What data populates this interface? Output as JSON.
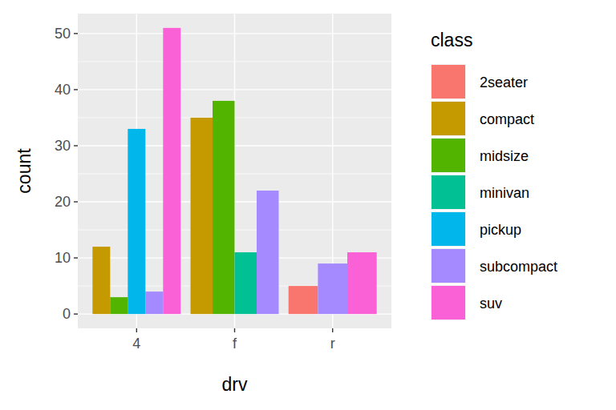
{
  "chart_data": {
    "type": "bar",
    "x_label": "drv",
    "y_label": "count",
    "categories": [
      "4",
      "f",
      "r"
    ],
    "legend_title": "class",
    "series": [
      {
        "name": "2seater",
        "color": "#F8766D",
        "values": [
          null,
          null,
          5
        ]
      },
      {
        "name": "compact",
        "color": "#C49A00",
        "values": [
          12,
          35,
          null
        ]
      },
      {
        "name": "midsize",
        "color": "#53B400",
        "values": [
          3,
          38,
          null
        ]
      },
      {
        "name": "minivan",
        "color": "#00C094",
        "values": [
          null,
          11,
          null
        ]
      },
      {
        "name": "pickup",
        "color": "#00B6EB",
        "values": [
          33,
          null,
          null
        ]
      },
      {
        "name": "subcompact",
        "color": "#A58AFF",
        "values": [
          4,
          22,
          9
        ]
      },
      {
        "name": "suv",
        "color": "#FB61D7",
        "values": [
          51,
          null,
          11
        ]
      }
    ],
    "ylim": [
      -2.55,
      53.55
    ],
    "yticks": [
      0,
      10,
      20,
      30,
      40,
      50
    ],
    "grid": true,
    "legend": "right"
  }
}
